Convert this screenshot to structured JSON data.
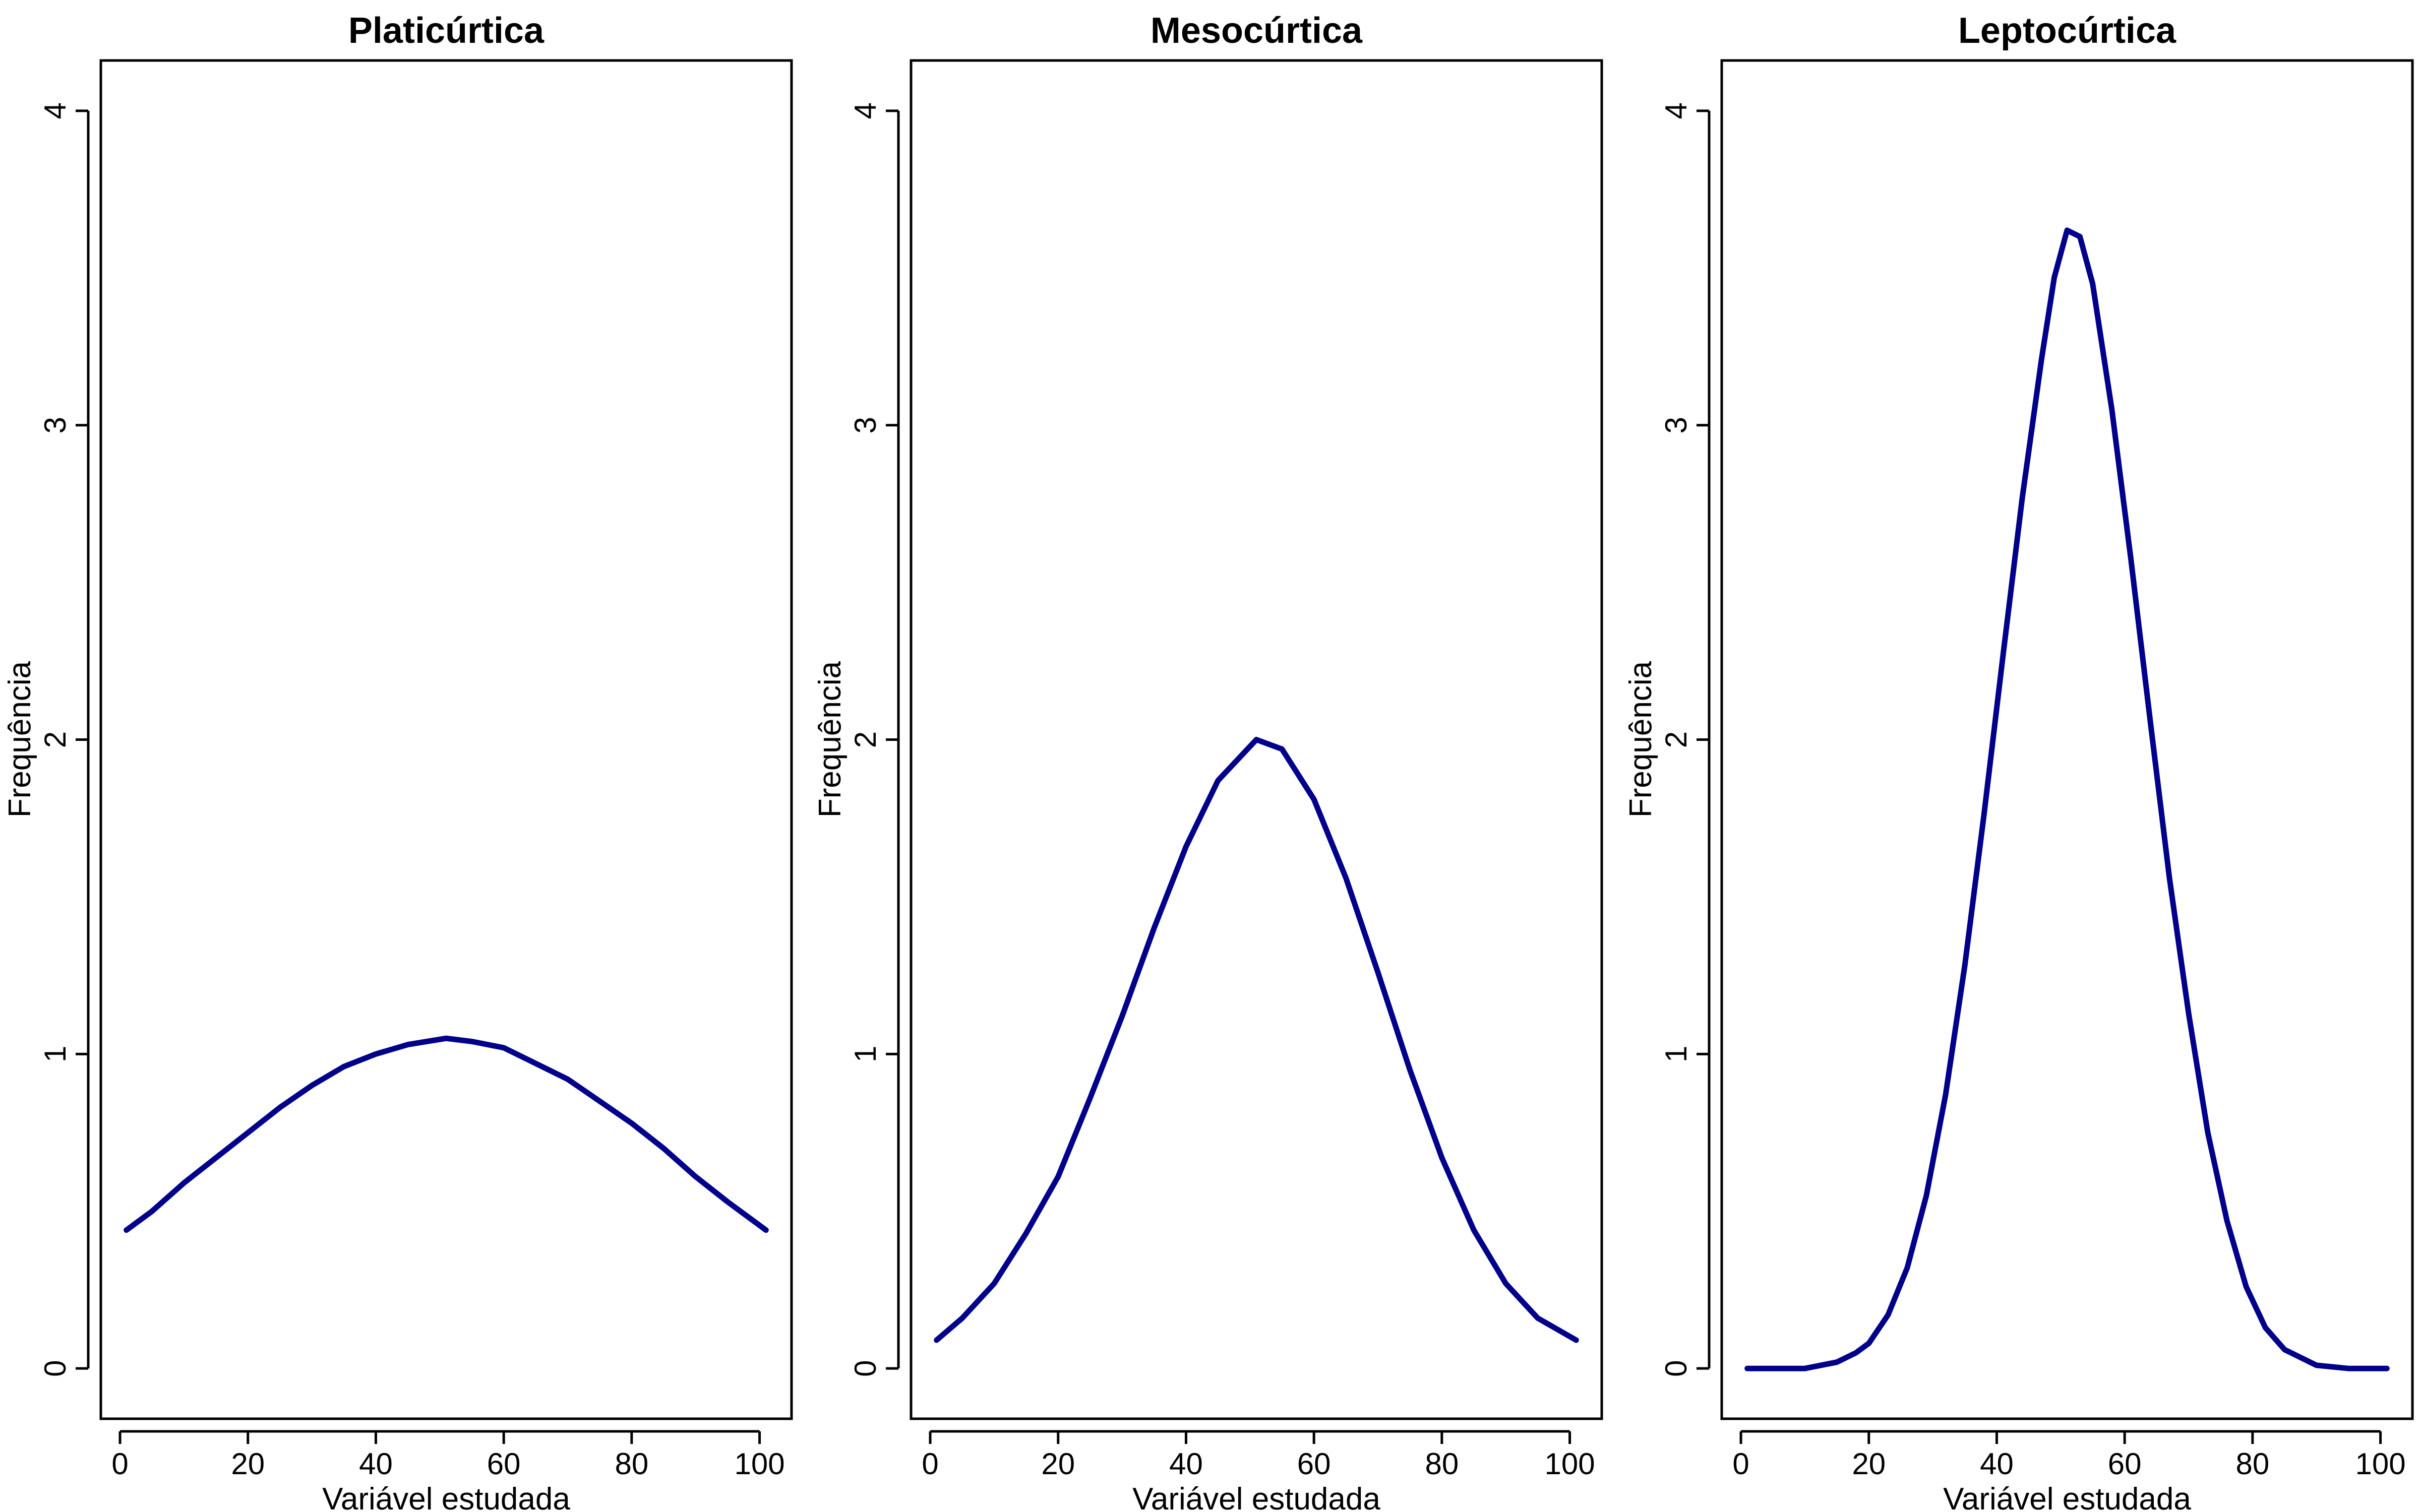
{
  "chart_data": [
    {
      "type": "line",
      "title": "Platicúrtica",
      "xlabel": "Variável estudada",
      "ylabel": "Frequência",
      "xlim": [
        -3,
        105
      ],
      "ylim": [
        -0.16,
        4.16
      ],
      "xticks": [
        0,
        20,
        40,
        60,
        80,
        100
      ],
      "yticks": [
        0,
        1,
        2,
        3,
        4
      ],
      "xtick_labels": [
        "0",
        "20",
        "40",
        "60",
        "80",
        "100"
      ],
      "ytick_labels": [
        "0",
        "1",
        "2",
        "3",
        "4"
      ],
      "series": [
        {
          "name": "Platicúrtica",
          "color": "#00008B",
          "x": [
            1,
            5,
            10,
            15,
            20,
            25,
            30,
            35,
            40,
            45,
            51,
            55,
            60,
            65,
            70,
            75,
            80,
            85,
            90,
            95,
            101
          ],
          "y": [
            0.44,
            0.5,
            0.59,
            0.67,
            0.75,
            0.83,
            0.9,
            0.96,
            1.0,
            1.03,
            1.05,
            1.04,
            1.02,
            0.97,
            0.92,
            0.85,
            0.78,
            0.7,
            0.61,
            0.53,
            0.44
          ]
        }
      ]
    },
    {
      "type": "line",
      "title": "Mesocúrtica",
      "xlabel": "Variável estudada",
      "ylabel": "Frequência",
      "xlim": [
        -3,
        105
      ],
      "ylim": [
        -0.16,
        4.16
      ],
      "xticks": [
        0,
        20,
        40,
        60,
        80,
        100
      ],
      "yticks": [
        0,
        1,
        2,
        3,
        4
      ],
      "xtick_labels": [
        "0",
        "20",
        "40",
        "60",
        "80",
        "100"
      ],
      "ytick_labels": [
        "0",
        "1",
        "2",
        "3",
        "4"
      ],
      "series": [
        {
          "name": "Mesocúrtica",
          "color": "#00008B",
          "x": [
            1,
            5,
            10,
            15,
            20,
            25,
            30,
            35,
            40,
            45,
            51,
            55,
            60,
            65,
            70,
            75,
            80,
            85,
            90,
            95,
            101
          ],
          "y": [
            0.09,
            0.16,
            0.27,
            0.43,
            0.61,
            0.86,
            1.12,
            1.4,
            1.66,
            1.87,
            2.0,
            1.97,
            1.81,
            1.56,
            1.26,
            0.95,
            0.67,
            0.44,
            0.27,
            0.16,
            0.09
          ]
        }
      ]
    },
    {
      "type": "line",
      "title": "Leptocúrtica",
      "xlabel": "Variável estudada",
      "ylabel": "Frequência",
      "xlim": [
        -3,
        105
      ],
      "ylim": [
        -0.16,
        4.16
      ],
      "xticks": [
        0,
        20,
        40,
        60,
        80,
        100
      ],
      "yticks": [
        0,
        1,
        2,
        3,
        4
      ],
      "xtick_labels": [
        "0",
        "20",
        "40",
        "60",
        "80",
        "100"
      ],
      "ytick_labels": [
        "0",
        "1",
        "2",
        "3",
        "4"
      ],
      "series": [
        {
          "name": "Leptocúrtica",
          "color": "#00008B",
          "x": [
            1,
            5,
            10,
            15,
            18,
            20,
            23,
            26,
            29,
            32,
            35,
            38,
            41,
            44,
            47,
            49,
            51,
            53,
            55,
            58,
            61,
            64,
            67,
            70,
            73,
            76,
            79,
            82,
            85,
            90,
            95,
            101
          ],
          "y": [
            0.0,
            0.0,
            0.0,
            0.02,
            0.05,
            0.08,
            0.17,
            0.32,
            0.55,
            0.87,
            1.28,
            1.76,
            2.27,
            2.77,
            3.21,
            3.47,
            3.62,
            3.6,
            3.45,
            3.05,
            2.57,
            2.06,
            1.56,
            1.13,
            0.75,
            0.47,
            0.26,
            0.13,
            0.06,
            0.01,
            0.0,
            0.0
          ]
        }
      ]
    }
  ]
}
